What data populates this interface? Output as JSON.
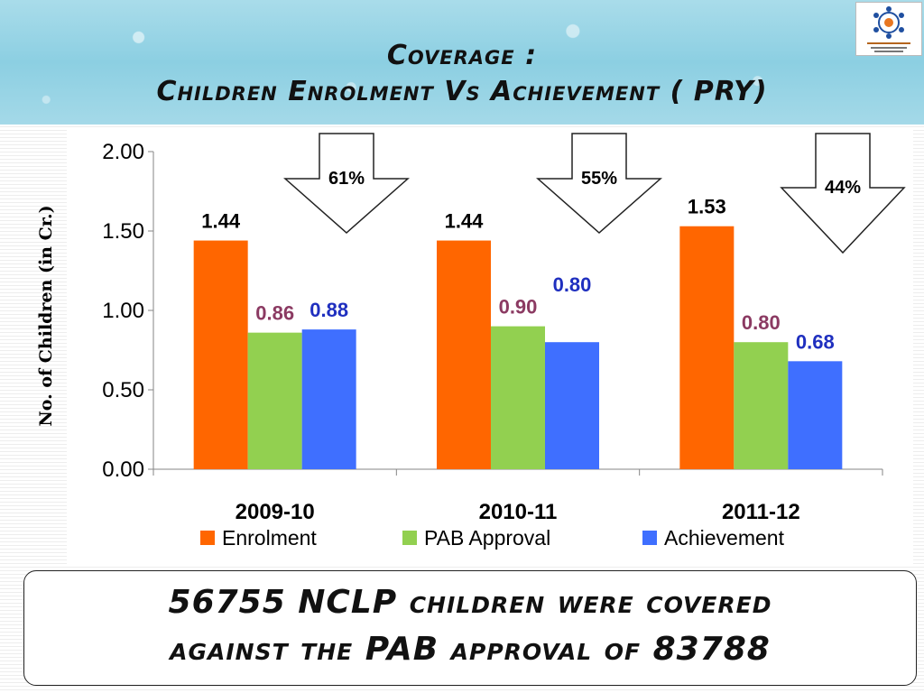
{
  "header": {
    "title_line1": "Coverage :",
    "title_line2": "Children Enrolment Vs Achievement ( PRY)"
  },
  "chart_data": {
    "type": "bar",
    "categories": [
      "2009-10",
      "2010-11",
      "2011-12"
    ],
    "series": [
      {
        "name": "Enrolment",
        "values": [
          1.44,
          1.44,
          1.53
        ],
        "color": "#ff6600",
        "label_color": "#000000"
      },
      {
        "name": "PAB Approval",
        "values": [
          0.86,
          0.9,
          0.8
        ],
        "color": "#92d050",
        "label_color": "#8b3a62"
      },
      {
        "name": "Achievement",
        "values": [
          0.88,
          0.8,
          0.68
        ],
        "color": "#3f6fff",
        "label_color": "#1f2fbf"
      }
    ],
    "value_labels": [
      [
        "1.44",
        "0.86",
        "0.88"
      ],
      [
        "1.44",
        "0.90",
        "0.80"
      ],
      [
        "1.53",
        "0.80",
        "0.68"
      ]
    ],
    "ylabel": "No. of Children (in Cr.)",
    "ylim": [
      0,
      2.0
    ],
    "yticks": [
      "0.00",
      "0.50",
      "1.00",
      "1.50",
      "2.00"
    ],
    "grid": false,
    "legend_position": "bottom",
    "annotations": [
      "61%",
      "55%",
      "44%"
    ]
  },
  "footer": {
    "line1": "56755 NCLP children were covered",
    "line2": "against the PAB approval of 83788"
  }
}
